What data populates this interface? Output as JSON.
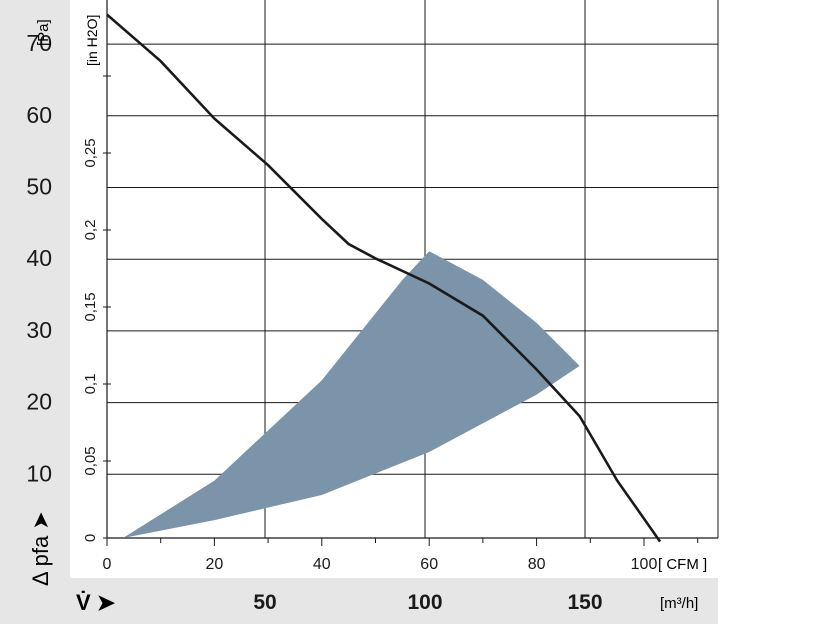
{
  "chart_data": {
    "type": "area",
    "title": "",
    "xlabel_cfm": "[ CFM ]",
    "xlabel_m3h": "[m³/h]",
    "x_axis_symbol": "V̇ ➤",
    "ylabel_pa": "[Pa]",
    "ylabel_inh2o": "[in H2O]",
    "ylabel_symbol": "Δ pfa ➤",
    "x_cfm_ticks": [
      "0",
      "20",
      "40",
      "60",
      "80",
      "100"
    ],
    "x_m3h_ticks": [
      "50",
      "100",
      "150"
    ],
    "y_pa_ticks": [
      "10",
      "20",
      "30",
      "40",
      "50",
      "60",
      "70"
    ],
    "y_inh2o_ticks": [
      "0",
      "0,05",
      "0,1",
      "0,15",
      "0,2",
      "0,25"
    ],
    "xlim_cfm": [
      0,
      113
    ],
    "ylim_pa": [
      0,
      75
    ],
    "grid": true,
    "series": [
      {
        "kind": "curve",
        "x": [
          0,
          10,
          20,
          30,
          40,
          45,
          50,
          60,
          70,
          80,
          88,
          95,
          103
        ],
        "y": [
          73,
          66.5,
          58.5,
          52,
          44.5,
          41,
          39,
          35.5,
          31,
          23.5,
          17,
          8,
          -0.5
        ]
      },
      {
        "kind": "operating-range",
        "upper_x": [
          3,
          20,
          40,
          55,
          60
        ],
        "upper_y": [
          0,
          8,
          22,
          36,
          40
        ],
        "right_x": [
          60,
          70,
          80,
          88
        ],
        "right_y": [
          40,
          36,
          30,
          24
        ],
        "lower_x": [
          88,
          80,
          60,
          40,
          20,
          3
        ],
        "lower_y": [
          24,
          20,
          12,
          6,
          2.5,
          0
        ],
        "color": "#7b94aa"
      }
    ]
  }
}
